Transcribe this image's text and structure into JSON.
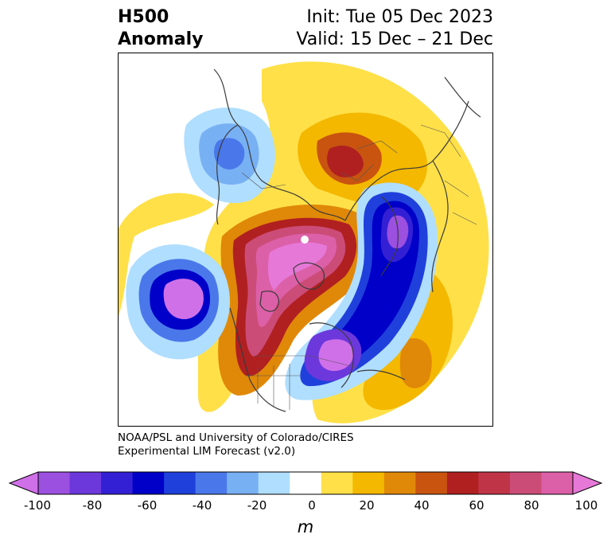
{
  "title": {
    "line1_left": "H500",
    "line2_left": "Anomaly",
    "line1_right": "Init: Tue 05 Dec 2023",
    "line2_right": "Valid: 15 Dec – 21 Dec"
  },
  "credit": {
    "line1": "NOAA/PSL and University of Colorado/CIRES",
    "line2": "Experimental LIM Forecast (v2.0)"
  },
  "colorbar": {
    "unit": "m",
    "min": -100,
    "max": 100,
    "ticks": [
      "-100",
      "-80",
      "-60",
      "-40",
      "-20",
      "0",
      "20",
      "40",
      "60",
      "80",
      "100"
    ],
    "colors": [
      "#d070e8",
      "#9c50e0",
      "#6c38dc",
      "#3420d4",
      "#0000c8",
      "#2040dc",
      "#4a78ea",
      "#78b0f4",
      "#b0deff",
      "#ffffff",
      "#ffe048",
      "#f4b800",
      "#e08808",
      "#c85410",
      "#b02020",
      "#c03448",
      "#cc4c78",
      "#dc60a8",
      "#e678d8"
    ]
  }
}
